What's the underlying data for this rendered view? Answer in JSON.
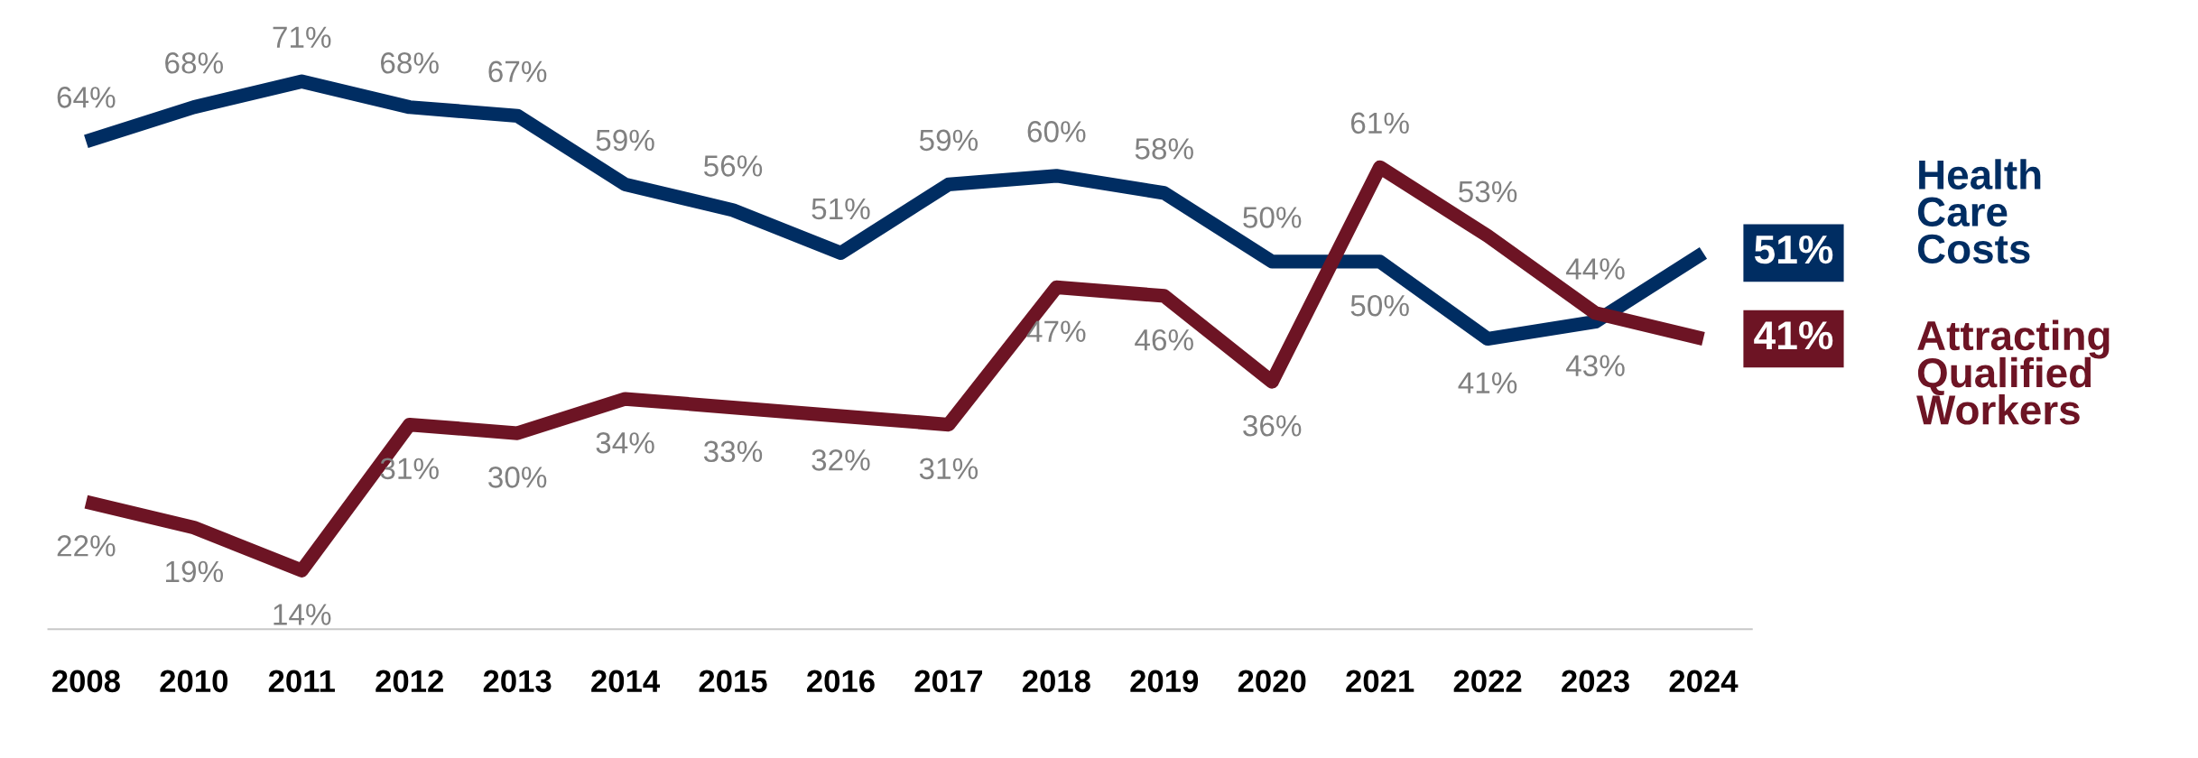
{
  "chart_data": {
    "type": "line",
    "categories": [
      "2008",
      "2010",
      "2011",
      "2012",
      "2013",
      "2014",
      "2015",
      "2016",
      "2017",
      "2018",
      "2019",
      "2020",
      "2021",
      "2022",
      "2023",
      "2024"
    ],
    "series": [
      {
        "name": "Health Care Costs",
        "color": "#002d62",
        "values": [
          64,
          68,
          71,
          68,
          67,
          59,
          56,
          51,
          59,
          60,
          58,
          50,
          50,
          41,
          43,
          51
        ],
        "value_labels": [
          "64%",
          "68%",
          "71%",
          "68%",
          "67%",
          "59%",
          "56%",
          "51%",
          "59%",
          "60%",
          "58%",
          "50%",
          "50%",
          "41%",
          "43%",
          "51%"
        ]
      },
      {
        "name": "Attracting Qualified Workers",
        "color": "#6d1424",
        "values": [
          22,
          19,
          14,
          31,
          30,
          34,
          33,
          32,
          31,
          47,
          46,
          36,
          61,
          53,
          44,
          41
        ],
        "value_labels": [
          "22%",
          "19%",
          "14%",
          "31%",
          "30%",
          "34%",
          "33%",
          "32%",
          "31%",
          "47%",
          "46%",
          "36%",
          "61%",
          "53%",
          "44%",
          "41%"
        ]
      }
    ],
    "grid": false,
    "legend": "right",
    "marker": "none",
    "line_style": "solid",
    "tick_labels": "x"
  }
}
